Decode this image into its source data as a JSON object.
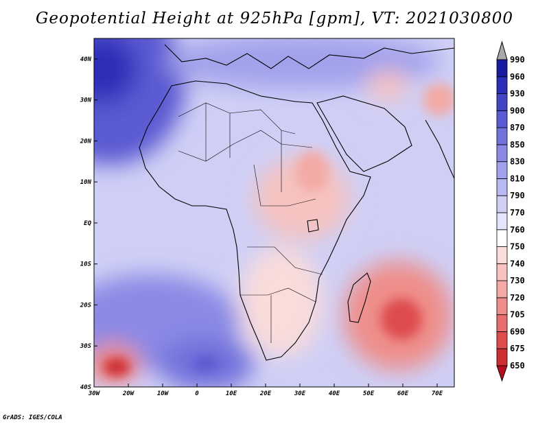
{
  "title": "Geopotential Height at 925hPa [gpm], VT: 2021030800",
  "credit": "GrADS: IGES/COLA",
  "map": {
    "region": "Africa",
    "lon_range": [
      -30,
      75
    ],
    "lat_range": [
      -40,
      45
    ],
    "lon_ticks": [
      "30W",
      "20W",
      "10W",
      "0",
      "10E",
      "20E",
      "30E",
      "40E",
      "50E",
      "60E",
      "70E"
    ],
    "lat_ticks": [
      "40N",
      "30N",
      "20N",
      "10N",
      "EQ",
      "10S",
      "20S",
      "30S",
      "40S"
    ]
  },
  "colorbar": {
    "levels": [
      "650",
      "675",
      "690",
      "705",
      "720",
      "730",
      "740",
      "750",
      "760",
      "770",
      "790",
      "810",
      "830",
      "850",
      "870",
      "900",
      "930",
      "960",
      "990"
    ],
    "colors": [
      "#b40f20",
      "#ce2d32",
      "#de4c4d",
      "#e66e6c",
      "#ee8e8a",
      "#f3aaa6",
      "#f6c3c0",
      "#fadcda",
      "#ffffff",
      "#e4e4fb",
      "#cfcff6",
      "#b9b9f1",
      "#a2a2ec",
      "#8a8ae5",
      "#7272dc",
      "#5a5ad2",
      "#4444c6",
      "#2d2db8",
      "#1a1aa0",
      "#a8a8a8"
    ]
  }
}
